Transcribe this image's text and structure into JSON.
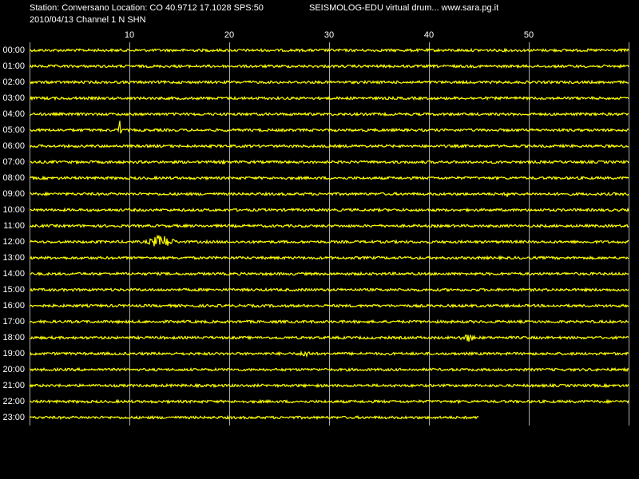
{
  "chart_data": {
    "type": "helicorder",
    "title": "Station: Conversano Location: CO 40.9712 17.1028 SPS:50",
    "source": "SEISMOLOG-EDU virtual drum... www.sara.pg.it",
    "subtitle": "2010/04/13  Channel 1 N SHN",
    "categories": [
      "00:00",
      "01:00",
      "02:00",
      "03:00",
      "04:00",
      "05:00",
      "06:00",
      "07:00",
      "08:00",
      "09:00",
      "10:00",
      "11:00",
      "12:00",
      "13:00",
      "14:00",
      "15:00",
      "16:00",
      "17:00",
      "18:00",
      "19:00",
      "20:00",
      "21:00",
      "22:00",
      "23:00"
    ],
    "xlim": [
      0,
      60
    ],
    "xticks": [
      10,
      20,
      30,
      40,
      50
    ],
    "grid": true,
    "color": "#ffff00"
  }
}
